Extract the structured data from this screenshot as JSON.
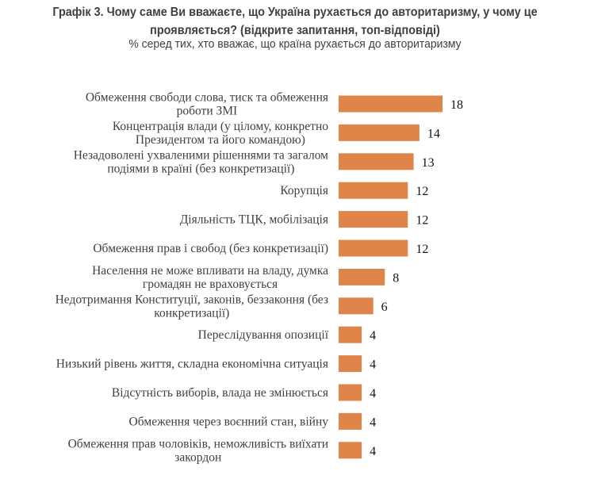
{
  "chart_data": {
    "type": "bar",
    "orientation": "horizontal",
    "title": "Графік 3. Чому саме Ви вважаєте, що Україна рухається до авторитаризму, у чому це проявляється? (відкрите запитання, топ-відповіді)",
    "title_lines": [
      "Графік 3. Чому саме Ви вважаєте, що Україна рухається до авторитаризму, у чому це",
      "проявляється? (відкрите запитання, топ-відповіді)"
    ],
    "subtitle": "% серед тих, хто вважає, що країна рухається до авторитаризму",
    "categories": [
      [
        "Обмеження свободи слова, тиск та обмеження",
        "роботи ЗМІ"
      ],
      [
        "Концентрація влади (у цілому, конкретно",
        "Президентом та його командою)"
      ],
      [
        "Незадоволені ухваленими рішеннями та загалом",
        "подіями в країні (без конкретизації)"
      ],
      [
        "Корупція"
      ],
      [
        "Діяльність ТЦК, мобілізація"
      ],
      [
        "Обмеження прав і свобод (без конкретизації)"
      ],
      [
        "Населення не може впливати на владу, думка",
        "громадян не враховується"
      ],
      [
        "Недотримання Конституції, законів, беззаконня (без",
        "конкретизації)"
      ],
      [
        "Переслідування опозиції"
      ],
      [
        "Низький рівень життя, складна економічна ситуація"
      ],
      [
        "Відсутність виборів, влада не змінюється"
      ],
      [
        "Обмеження через воєнний стан, війну"
      ],
      [
        "Обмеження прав чоловіків, неможливість виїхати",
        "закордон"
      ]
    ],
    "values": [
      18,
      14,
      13,
      12,
      12,
      12,
      8,
      6,
      4,
      4,
      4,
      4,
      4
    ],
    "xlim": [
      0,
      18
    ],
    "grid": false,
    "data_labels": true,
    "bar_color": "#E0854A"
  }
}
